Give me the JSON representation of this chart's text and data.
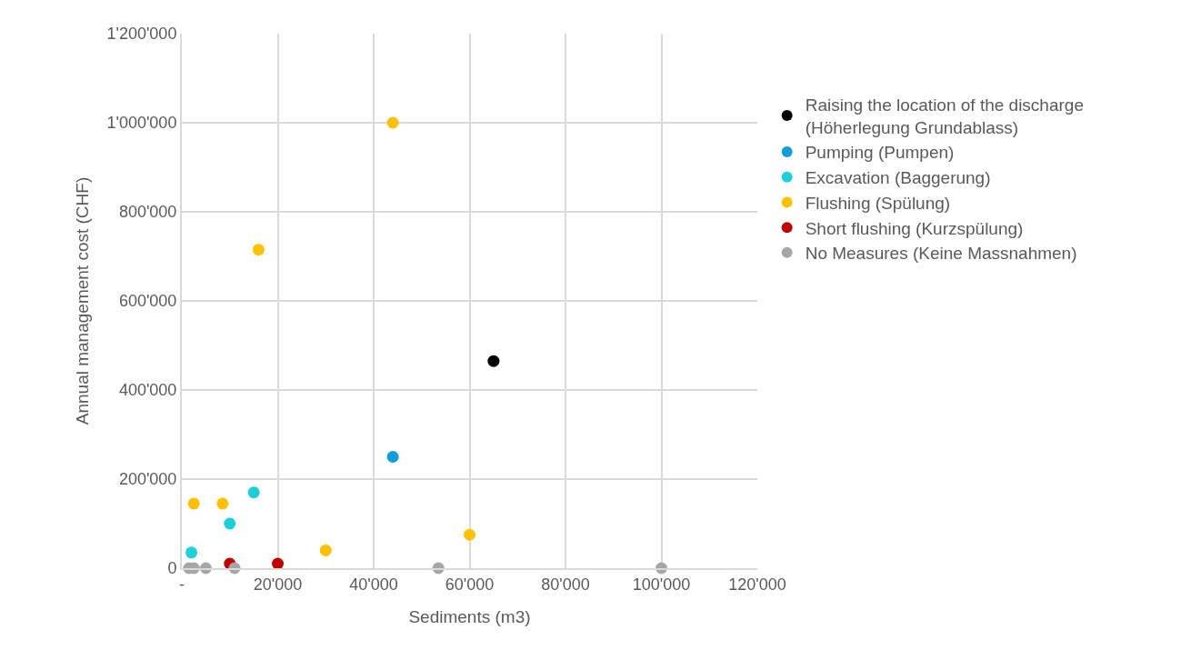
{
  "chart_data": {
    "type": "scatter",
    "xlabel": "Sediments (m3)",
    "ylabel": "Annual management cost (CHF)",
    "xlim": [
      0,
      120000
    ],
    "xticks": [
      {
        "value": 0,
        "label": "-"
      },
      {
        "value": 20000,
        "label": "20'000"
      },
      {
        "value": 40000,
        "label": "40'000"
      },
      {
        "value": 60000,
        "label": "60'000"
      },
      {
        "value": 80000,
        "label": "80'000"
      },
      {
        "value": 100000,
        "label": "100'000"
      },
      {
        "value": 120000,
        "label": "120'000"
      }
    ],
    "ylim": [
      0,
      1200000
    ],
    "yticks": [
      0,
      {
        "value": 200000,
        "label": "200'000"
      },
      {
        "value": 400000,
        "label": "400'000"
      },
      {
        "value": 600000,
        "label": "600'000"
      },
      {
        "value": 800000,
        "label": "800'000"
      },
      {
        "value": 1000000,
        "label": "1'000'000"
      },
      {
        "value": 1200000,
        "label": "1'200'000"
      }
    ],
    "grid": true,
    "legend": "right",
    "marker": "circle",
    "series": [
      {
        "name": "Raising the location of the discharge (Höherlegung Grundablass)",
        "color": "#000000",
        "x": [
          65000
        ],
        "values": [
          465000
        ]
      },
      {
        "name": "Pumping (Pumpen)",
        "color": "#0f9ed5",
        "x": [
          44000
        ],
        "values": [
          250000
        ]
      },
      {
        "name": "Excavation (Baggerung)",
        "color": "#1ecfd9",
        "x": [
          2000,
          10000,
          15000
        ],
        "values": [
          35000,
          100000,
          170000
        ]
      },
      {
        "name": "Flushing (Spülung)",
        "color": "#ffc000",
        "x": [
          2500,
          8500,
          16000,
          30000,
          44000,
          60000
        ],
        "values": [
          145000,
          145000,
          715000,
          40000,
          1000000,
          75000
        ]
      },
      {
        "name": "Short flushing (Kurzspülung)",
        "color": "#c00000",
        "x": [
          10000,
          20000
        ],
        "values": [
          10000,
          10000
        ]
      },
      {
        "name": "No Measures (Keine Massnahmen)",
        "color": "#a6a6a6",
        "x": [
          1500,
          2500,
          5000,
          11000,
          53500,
          100000
        ],
        "values": [
          0,
          0,
          0,
          0,
          0,
          0
        ]
      }
    ]
  }
}
